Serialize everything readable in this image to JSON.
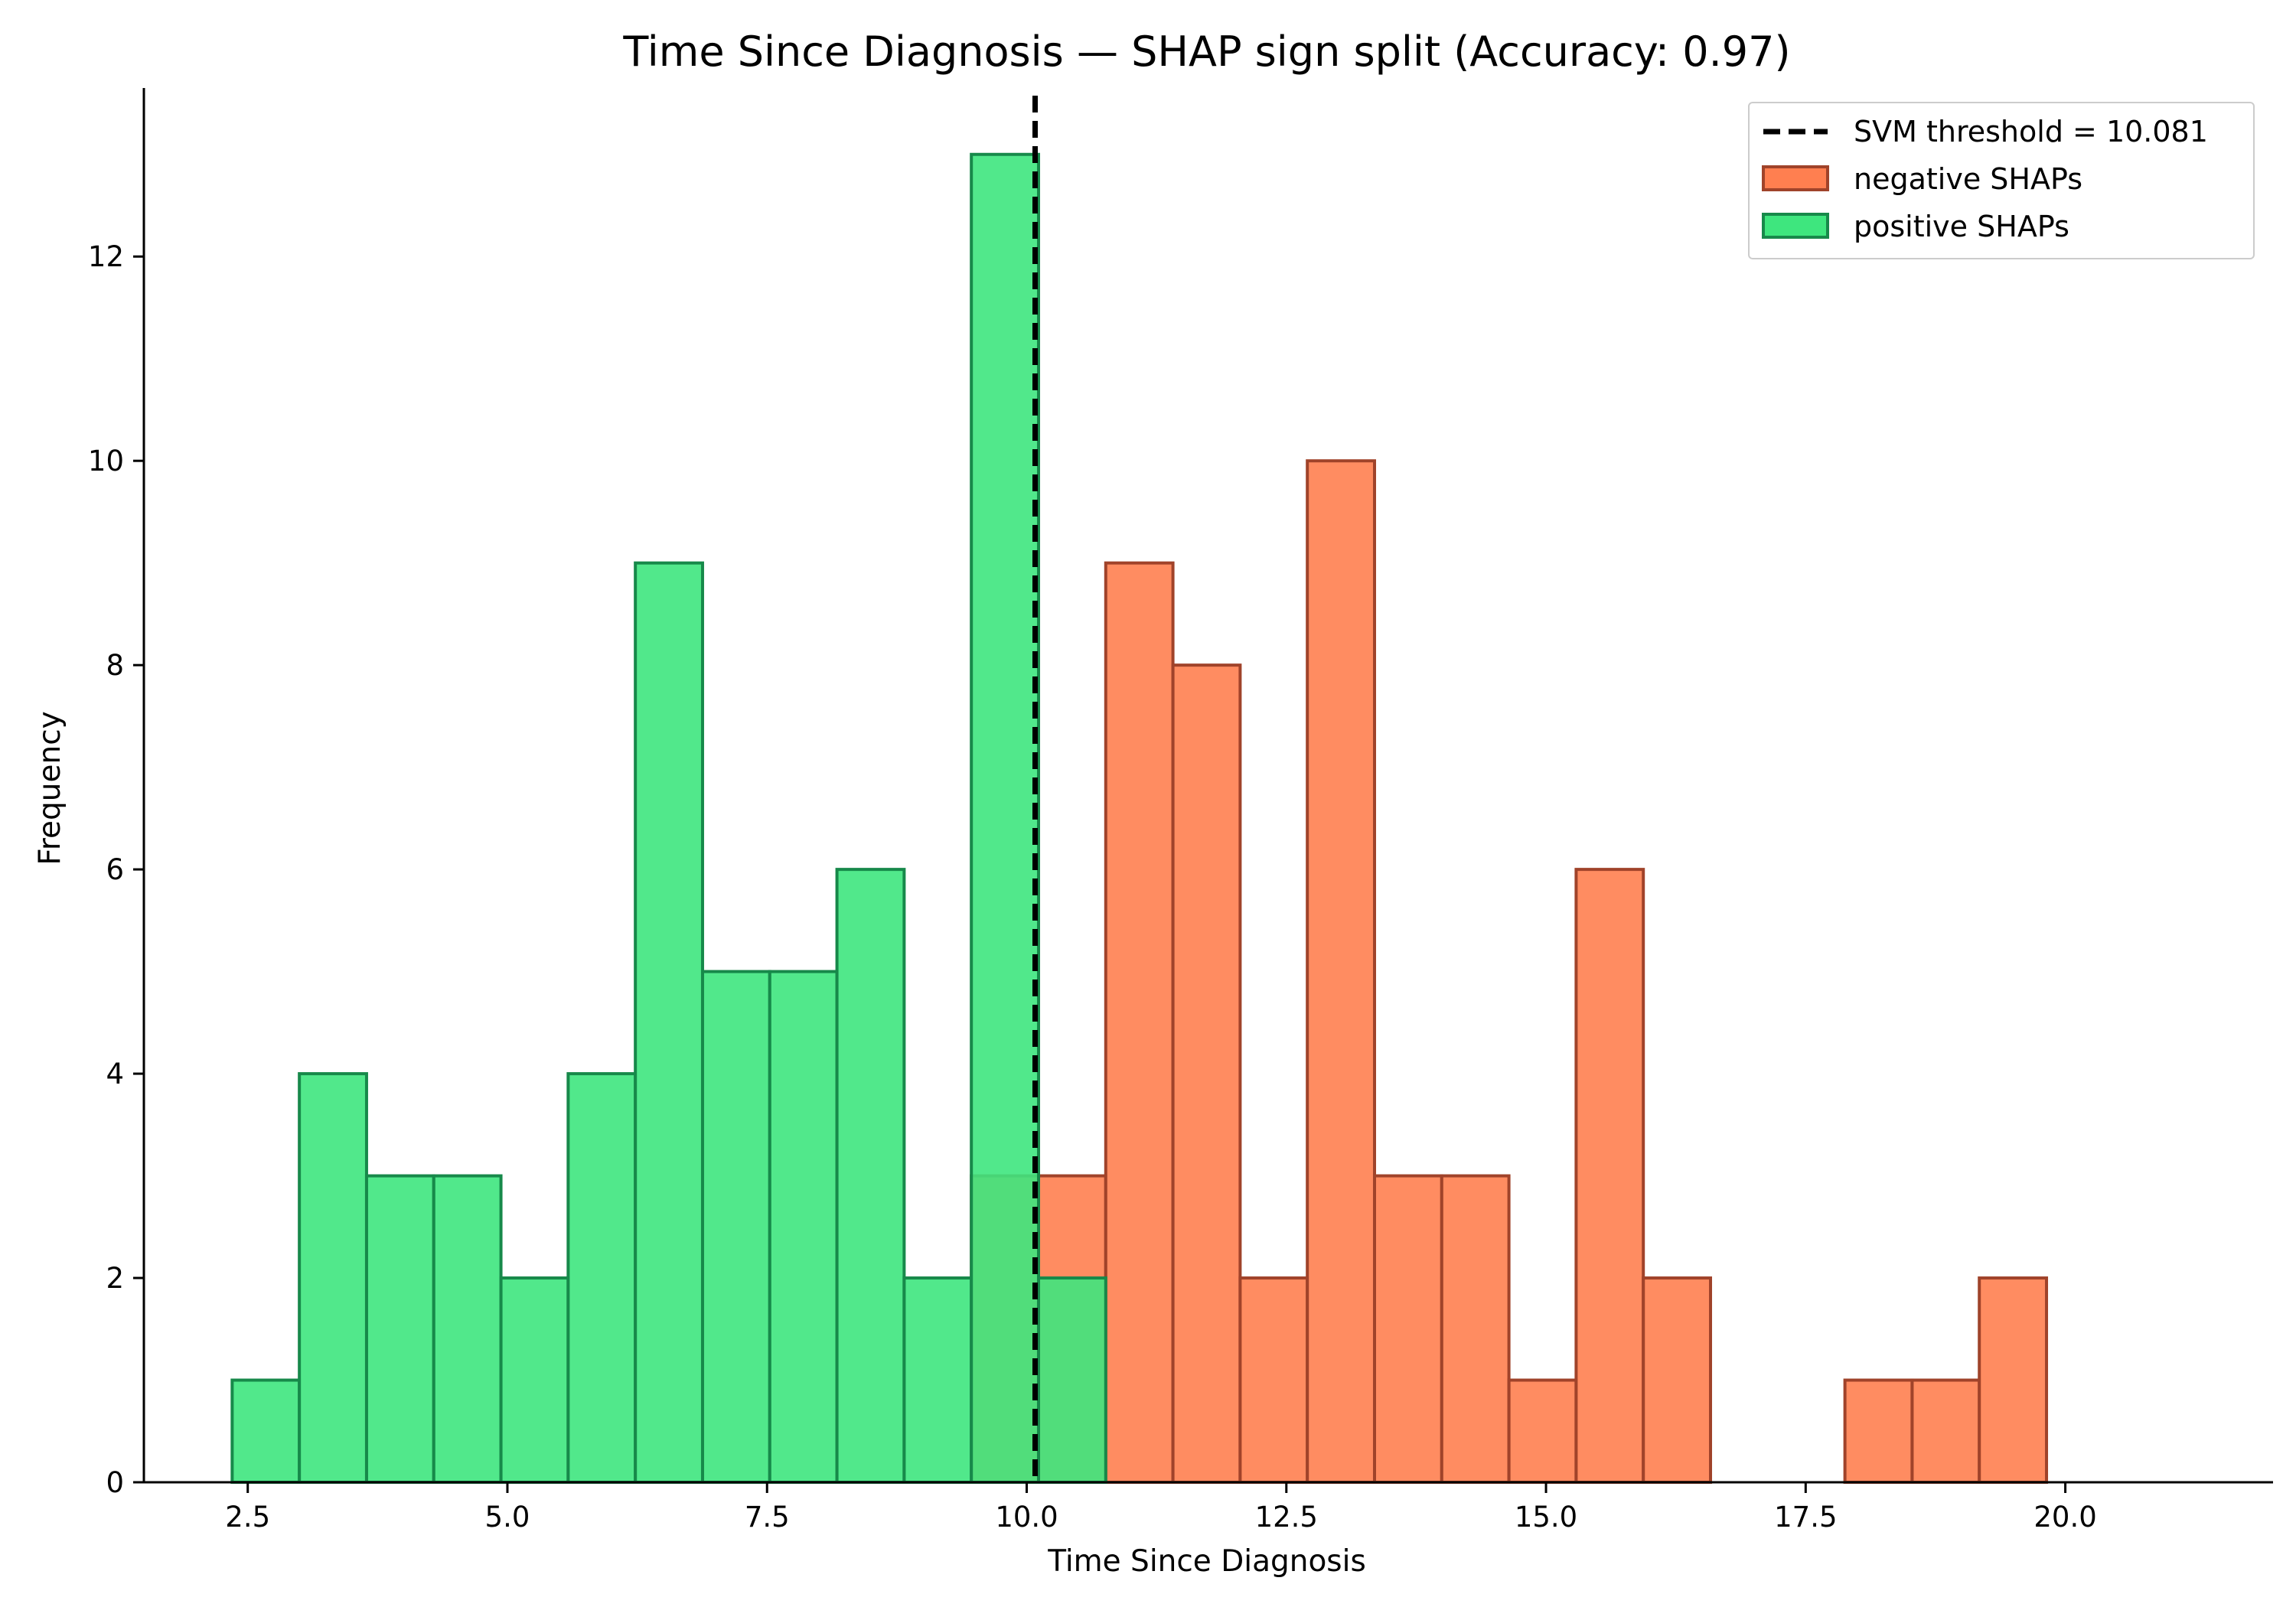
{
  "chart_data": {
    "type": "bar",
    "title": "Time Since Diagnosis — SHAP sign split (Accuracy: 0.97)",
    "xlabel": "Time Since Diagnosis",
    "ylabel": "Frequency",
    "xlim": [
      1.5,
      22.0
    ],
    "ylim": [
      0,
      13.65
    ],
    "x_ticks": [
      2.5,
      5.0,
      7.5,
      10.0,
      12.5,
      15.0,
      17.5,
      20.0
    ],
    "y_ticks": [
      0,
      2,
      4,
      6,
      8,
      10,
      12
    ],
    "bin_edges": [
      2.35,
      2.997,
      3.644,
      4.291,
      4.938,
      5.585,
      6.232,
      6.879,
      7.526,
      8.173,
      8.82,
      9.467,
      10.114,
      10.761,
      11.408,
      12.055,
      12.702,
      13.349,
      13.996,
      14.643,
      15.29,
      15.937,
      16.584,
      17.231,
      17.878,
      18.525,
      19.172,
      19.819,
      20.466,
      21.113
    ],
    "threshold": {
      "value": 10.081,
      "label": "SVM threshold = 10.081"
    },
    "series": [
      {
        "name": "negative SHAPs",
        "color": "#ff7f50",
        "edge_color": "#a0432a",
        "values": [
          0,
          0,
          0,
          0,
          0,
          0,
          0,
          0,
          0,
          0,
          0,
          3,
          3,
          9,
          8,
          2,
          10,
          3,
          3,
          1,
          6,
          2,
          0,
          0,
          1,
          1,
          2,
          0,
          0
        ]
      },
      {
        "name": "positive SHAPs",
        "color": "#3ee67e",
        "edge_color": "#17894a",
        "values": [
          1,
          4,
          3,
          3,
          2,
          4,
          9,
          5,
          5,
          6,
          2,
          13,
          2,
          0,
          0,
          0,
          0,
          0,
          0,
          0,
          0,
          0,
          0,
          0,
          0,
          0,
          0,
          0,
          0
        ]
      }
    ],
    "legend_position": "top-right",
    "grid": false
  }
}
